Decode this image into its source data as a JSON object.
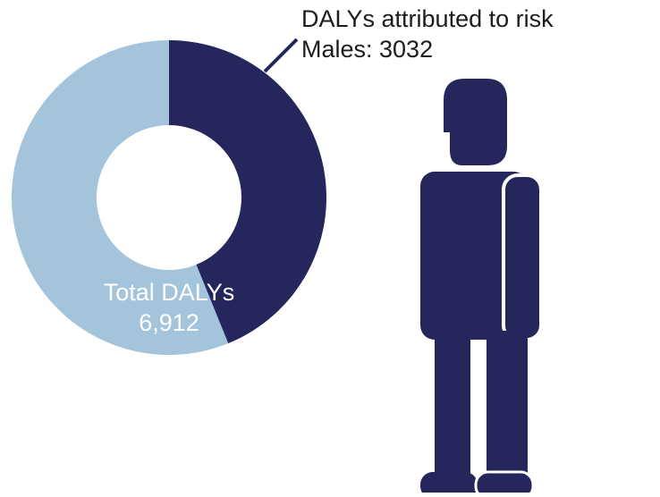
{
  "colors": {
    "attributed": "#25265b",
    "remaining": "#a3c4da",
    "figure": "#25265b",
    "background": "#ffffff"
  },
  "chart_data": {
    "type": "pie",
    "donut": true,
    "total": 6912,
    "total_label": "Total DALYs",
    "total_value_text": "6,912",
    "slices": [
      {
        "key": "attributed",
        "value": 3032,
        "color": "#25265b"
      },
      {
        "key": "remaining",
        "value": 3880,
        "color": "#a3c4da"
      }
    ],
    "annotation": {
      "line1": "DALYs attributed to risk",
      "line2": "Males: 3032"
    }
  },
  "icon": {
    "name": "male-person-icon"
  }
}
